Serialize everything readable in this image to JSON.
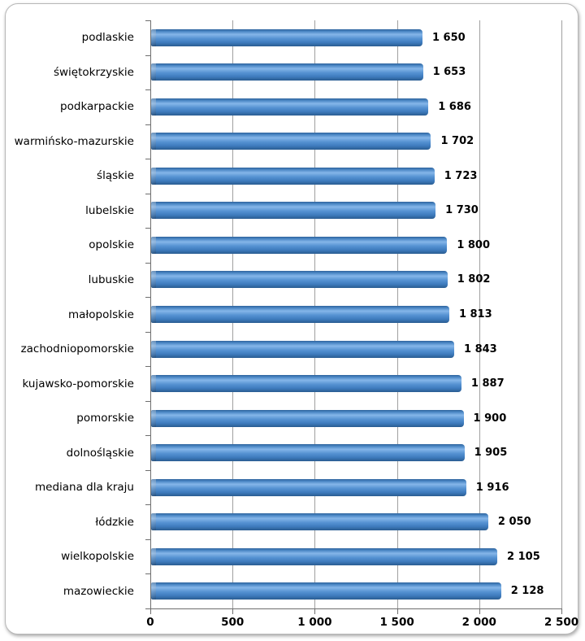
{
  "chart_data": {
    "type": "bar",
    "orientation": "horizontal",
    "title": "",
    "xlabel": "",
    "ylabel": "",
    "legend": "none",
    "grid": "vertical",
    "xlim": [
      0,
      2500
    ],
    "x_ticks": [
      0,
      500,
      1000,
      1500,
      2000,
      2500
    ],
    "x_tick_labels": [
      "0",
      "500",
      "1 000",
      "1 500",
      "2 000",
      "2 500"
    ],
    "categories": [
      "podlaskie",
      "świętokrzyskie",
      "podkarpackie",
      "warmińsko-mazurskie",
      "śląskie",
      "lubelskie",
      "opolskie",
      "lubuskie",
      "małopolskie",
      "zachodniopomorskie",
      "kujawsko-pomorskie",
      "pomorskie",
      "dolnośląskie",
      "mediana dla kraju",
      "łódzkie",
      "wielkopolskie",
      "mazowieckie"
    ],
    "values": [
      1650,
      1653,
      1686,
      1702,
      1723,
      1730,
      1800,
      1802,
      1813,
      1843,
      1887,
      1900,
      1905,
      1916,
      2050,
      2105,
      2128
    ],
    "value_labels": [
      "1 650",
      "1 653",
      "1 686",
      "1 702",
      "1 723",
      "1 730",
      "1 800",
      "1 802",
      "1 813",
      "1 843",
      "1 887",
      "1 900",
      "1 905",
      "1 916",
      "2 050",
      "2 105",
      "2 128"
    ],
    "colors": {
      "bar_main": "#3e7bbd",
      "bar_highlight": "#85b6e9",
      "bar_dark": "#2a5c91",
      "gridline": "#a0a0a0",
      "axis": "#6e6e6e",
      "text": "#000000"
    }
  }
}
